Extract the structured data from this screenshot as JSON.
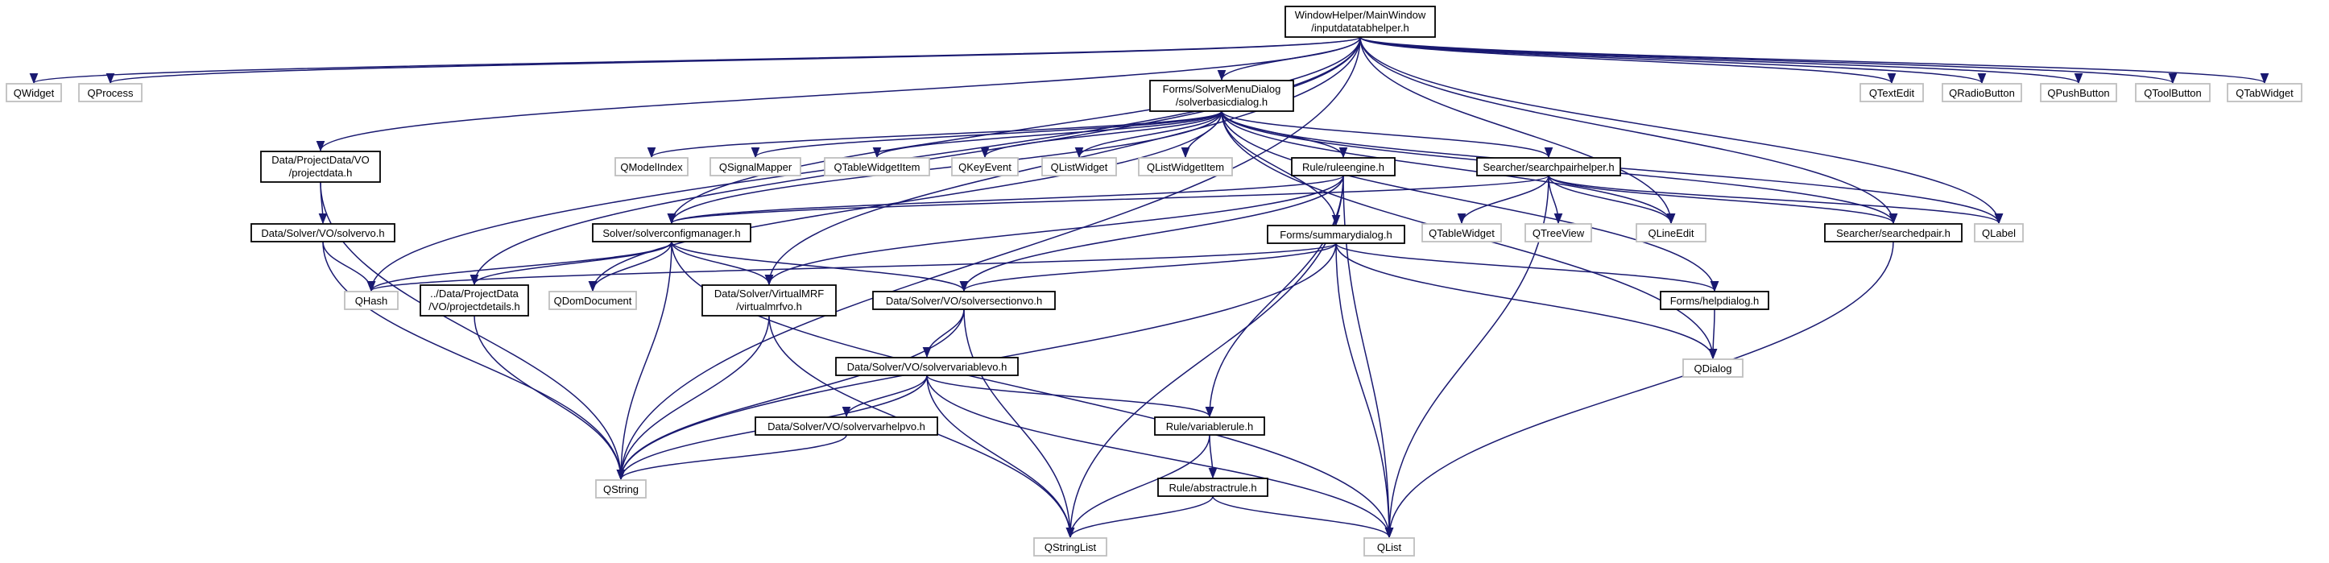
{
  "colors": {
    "edge": "#191970",
    "root_fill": "#bfbfbf",
    "header_border": "#000000",
    "external_border": "#bfbfbf",
    "background": "#ffffff"
  },
  "nodes": [
    {
      "id": "root",
      "lines": [
        "WindowHelper/MainWindow",
        "/inputdatatabhelper.h"
      ],
      "kind": "root"
    },
    {
      "id": "qwidget",
      "lines": [
        "QWidget"
      ],
      "kind": "external"
    },
    {
      "id": "qprocess",
      "lines": [
        "QProcess"
      ],
      "kind": "external"
    },
    {
      "id": "qtextedit",
      "lines": [
        "QTextEdit"
      ],
      "kind": "external"
    },
    {
      "id": "qradiobutton",
      "lines": [
        "QRadioButton"
      ],
      "kind": "external"
    },
    {
      "id": "qpushbutton",
      "lines": [
        "QPushButton"
      ],
      "kind": "external"
    },
    {
      "id": "qtoolbutton",
      "lines": [
        "QToolButton"
      ],
      "kind": "external"
    },
    {
      "id": "qtabwidget",
      "lines": [
        "QTabWidget"
      ],
      "kind": "external"
    },
    {
      "id": "solvermenu",
      "lines": [
        "Forms/SolverMenuDialog",
        "/solverbasicdialog.h"
      ],
      "kind": "header"
    },
    {
      "id": "projectdata",
      "lines": [
        "Data/ProjectData/VO",
        "/projectdata.h"
      ],
      "kind": "header"
    },
    {
      "id": "qmodelindex",
      "lines": [
        "QModelIndex"
      ],
      "kind": "external"
    },
    {
      "id": "qsignalmapper",
      "lines": [
        "QSignalMapper"
      ],
      "kind": "external"
    },
    {
      "id": "qtablewidgetitem",
      "lines": [
        "QTableWidgetItem"
      ],
      "kind": "external"
    },
    {
      "id": "qkeyevent",
      "lines": [
        "QKeyEvent"
      ],
      "kind": "external"
    },
    {
      "id": "qlistwidget",
      "lines": [
        "QListWidget"
      ],
      "kind": "external"
    },
    {
      "id": "qlistwidgetitem",
      "lines": [
        "QListWidgetItem"
      ],
      "kind": "external"
    },
    {
      "id": "ruleengine",
      "lines": [
        "Rule/ruleengine.h"
      ],
      "kind": "header"
    },
    {
      "id": "searchpairhelper",
      "lines": [
        "Searcher/searchpairhelper.h"
      ],
      "kind": "header"
    },
    {
      "id": "solvervo",
      "lines": [
        "Data/Solver/VO/solvervo.h"
      ],
      "kind": "header"
    },
    {
      "id": "solverconfig",
      "lines": [
        "Solver/solverconfigmanager.h"
      ],
      "kind": "header"
    },
    {
      "id": "summarydialog",
      "lines": [
        "Forms/summarydialog.h"
      ],
      "kind": "header"
    },
    {
      "id": "qtablewidget",
      "lines": [
        "QTableWidget"
      ],
      "kind": "external"
    },
    {
      "id": "qtreeview",
      "lines": [
        "QTreeView"
      ],
      "kind": "external"
    },
    {
      "id": "qlineedit",
      "lines": [
        "QLineEdit"
      ],
      "kind": "external"
    },
    {
      "id": "searchedpair",
      "lines": [
        "Searcher/searchedpair.h"
      ],
      "kind": "header"
    },
    {
      "id": "qlabel",
      "lines": [
        "QLabel"
      ],
      "kind": "external"
    },
    {
      "id": "qhash",
      "lines": [
        "QHash"
      ],
      "kind": "external"
    },
    {
      "id": "projectdetails",
      "lines": [
        "../Data/ProjectData",
        "/VO/projectdetails.h"
      ],
      "kind": "header"
    },
    {
      "id": "qdomdocument",
      "lines": [
        "QDomDocument"
      ],
      "kind": "external"
    },
    {
      "id": "virtualmrf",
      "lines": [
        "Data/Solver/VirtualMRF",
        "/virtualmrfvo.h"
      ],
      "kind": "header"
    },
    {
      "id": "solversectionvo",
      "lines": [
        "Data/Solver/VO/solversectionvo.h"
      ],
      "kind": "header"
    },
    {
      "id": "helpdialog",
      "lines": [
        "Forms/helpdialog.h"
      ],
      "kind": "header"
    },
    {
      "id": "qdialog",
      "lines": [
        "QDialog"
      ],
      "kind": "external"
    },
    {
      "id": "solvervariablevo",
      "lines": [
        "Data/Solver/VO/solvervariablevo.h"
      ],
      "kind": "header"
    },
    {
      "id": "solvervarhelpvo",
      "lines": [
        "Data/Solver/VO/solvervarhelpvo.h"
      ],
      "kind": "header"
    },
    {
      "id": "variablerule",
      "lines": [
        "Rule/variablerule.h"
      ],
      "kind": "header"
    },
    {
      "id": "abstractrule",
      "lines": [
        "Rule/abstractrule.h"
      ],
      "kind": "header"
    },
    {
      "id": "qstring",
      "lines": [
        "QString"
      ],
      "kind": "external"
    },
    {
      "id": "qstringlist",
      "lines": [
        "QStringList"
      ],
      "kind": "external"
    },
    {
      "id": "qlist",
      "lines": [
        "QList"
      ],
      "kind": "external"
    }
  ],
  "edges": [
    [
      "root",
      "qwidget"
    ],
    [
      "root",
      "qprocess"
    ],
    [
      "root",
      "qtextedit"
    ],
    [
      "root",
      "qradiobutton"
    ],
    [
      "root",
      "qpushbutton"
    ],
    [
      "root",
      "qtoolbutton"
    ],
    [
      "root",
      "qtabwidget"
    ],
    [
      "root",
      "solvermenu"
    ],
    [
      "root",
      "projectdata"
    ],
    [
      "root",
      "qhash"
    ],
    [
      "root",
      "qstring"
    ],
    [
      "root",
      "solverconfig"
    ],
    [
      "root",
      "projectdetails"
    ],
    [
      "root",
      "virtualmrf"
    ],
    [
      "root",
      "qlineedit"
    ],
    [
      "root",
      "qlabel"
    ],
    [
      "root",
      "searchedpair"
    ],
    [
      "solvermenu",
      "qmodelindex"
    ],
    [
      "solvermenu",
      "qsignalmapper"
    ],
    [
      "solvermenu",
      "qtablewidgetitem"
    ],
    [
      "solvermenu",
      "qkeyevent"
    ],
    [
      "solvermenu",
      "qlistwidget"
    ],
    [
      "solvermenu",
      "qlistwidgetitem"
    ],
    [
      "solvermenu",
      "ruleengine"
    ],
    [
      "solvermenu",
      "searchpairhelper"
    ],
    [
      "solvermenu",
      "solverconfig"
    ],
    [
      "solvermenu",
      "summarydialog"
    ],
    [
      "solvermenu",
      "qdomdocument"
    ],
    [
      "solvermenu",
      "helpdialog"
    ],
    [
      "solvermenu",
      "qdialog"
    ],
    [
      "solvermenu",
      "searchedpair"
    ],
    [
      "solvermenu",
      "qlabel"
    ],
    [
      "solvermenu",
      "qlineedit"
    ],
    [
      "projectdata",
      "solvervo"
    ],
    [
      "projectdata",
      "qstring"
    ],
    [
      "solvervo",
      "qhash"
    ],
    [
      "solvervo",
      "qstring"
    ],
    [
      "ruleengine",
      "solverconfig"
    ],
    [
      "ruleengine",
      "virtualmrf"
    ],
    [
      "ruleengine",
      "solversectionvo"
    ],
    [
      "ruleengine",
      "variablerule"
    ],
    [
      "ruleengine",
      "qstringlist"
    ],
    [
      "ruleengine",
      "qlist"
    ],
    [
      "searchpairhelper",
      "solverconfig"
    ],
    [
      "searchpairhelper",
      "qtablewidget"
    ],
    [
      "searchpairhelper",
      "qtreeview"
    ],
    [
      "searchpairhelper",
      "qlineedit"
    ],
    [
      "searchpairhelper",
      "searchedpair"
    ],
    [
      "searchpairhelper",
      "qlabel"
    ],
    [
      "searchpairhelper",
      "qlist"
    ],
    [
      "solverconfig",
      "qhash"
    ],
    [
      "solverconfig",
      "projectdetails"
    ],
    [
      "solverconfig",
      "qdomdocument"
    ],
    [
      "solverconfig",
      "virtualmrf"
    ],
    [
      "solverconfig",
      "solversectionvo"
    ],
    [
      "solverconfig",
      "qstring"
    ],
    [
      "solverconfig",
      "qlist"
    ],
    [
      "summarydialog",
      "qhash"
    ],
    [
      "summarydialog",
      "solversectionvo"
    ],
    [
      "summarydialog",
      "helpdialog"
    ],
    [
      "summarydialog",
      "qdialog"
    ],
    [
      "summarydialog",
      "qstring"
    ],
    [
      "summarydialog",
      "qlist"
    ],
    [
      "searchedpair",
      "qlist"
    ],
    [
      "projectdetails",
      "qstring"
    ],
    [
      "virtualmrf",
      "qstring"
    ],
    [
      "virtualmrf",
      "qstringlist"
    ],
    [
      "solversectionvo",
      "solvervariablevo"
    ],
    [
      "solversectionvo",
      "qstring"
    ],
    [
      "solversectionvo",
      "qstringlist"
    ],
    [
      "helpdialog",
      "qdialog"
    ],
    [
      "solvervariablevo",
      "solvervarhelpvo"
    ],
    [
      "solvervariablevo",
      "variablerule"
    ],
    [
      "solvervariablevo",
      "qstring"
    ],
    [
      "solvervariablevo",
      "qstringlist"
    ],
    [
      "solvervariablevo",
      "qlist"
    ],
    [
      "solvervarhelpvo",
      "qstring"
    ],
    [
      "variablerule",
      "abstractrule"
    ],
    [
      "variablerule",
      "qstringlist"
    ],
    [
      "abstractrule",
      "qstringlist"
    ],
    [
      "abstractrule",
      "qlist"
    ]
  ]
}
